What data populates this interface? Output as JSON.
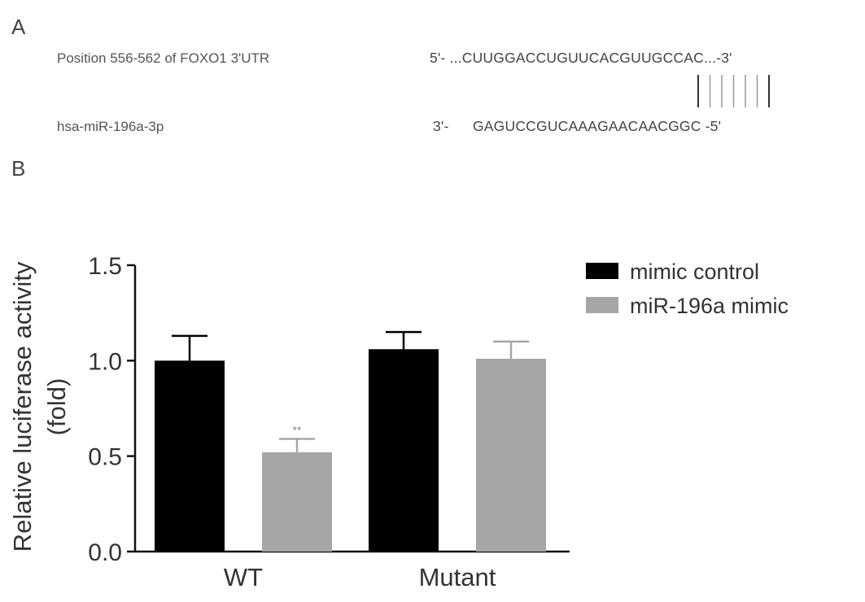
{
  "panel_a": {
    "label": "A",
    "utr_label": "Position 556-562 of FOXO1 3'UTR",
    "utr_seq": "5'- ...CUUGGACCUGUUCACGUUGCCAC...-3'",
    "mir_label": "hsa-miR-196a-3p",
    "mir_prefix": "3'-",
    "mir_seq": "GAGUCCGUCAAAGAACAACGGC -5'",
    "pairing_lines": 7
  },
  "panel_b": {
    "label": "B"
  },
  "chart_data": {
    "type": "bar",
    "ylabel_line1": "Relative luciferase activity",
    "ylabel_line2": "(fold)",
    "categories": [
      "WT",
      "Mutant"
    ],
    "ylim": [
      0,
      1.5
    ],
    "yticks": [
      "0.0",
      "0.5",
      "1.0",
      "1.5"
    ],
    "ytick_values": [
      0,
      0.5,
      1.0,
      1.5
    ],
    "grid": false,
    "legend_position": "top-right",
    "series": [
      {
        "name": "mimic control",
        "color": "#000000",
        "values": [
          1.0,
          1.06
        ],
        "errors": [
          0.13,
          0.09
        ]
      },
      {
        "name": "miR-196a mimic",
        "color": "#a6a6a6",
        "values": [
          0.52,
          1.01
        ],
        "errors": [
          0.07,
          0.09
        ]
      }
    ],
    "annotations": [
      {
        "text": "**",
        "category": 0,
        "series": 1
      }
    ]
  }
}
